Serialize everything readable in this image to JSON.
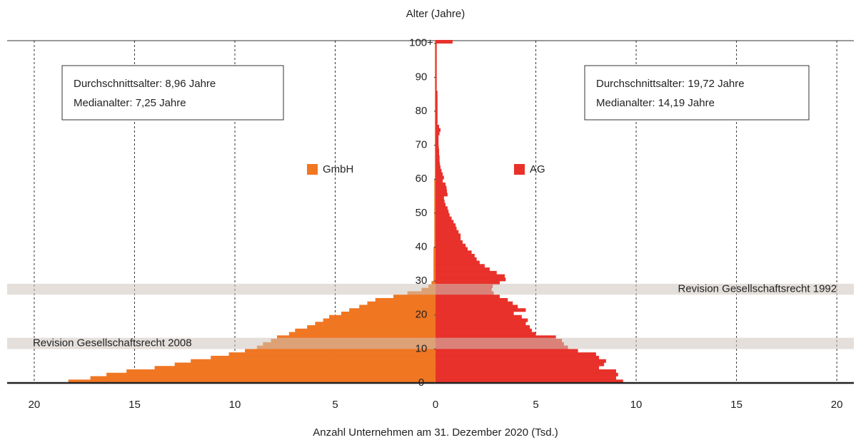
{
  "chart_data": {
    "type": "pyramid",
    "title": "Alter (Jahre)",
    "xlabel": "Anzahl Unternehmen am 31. Dezember 2020 (Tsd.)",
    "y": [
      0,
      1,
      2,
      3,
      4,
      5,
      6,
      7,
      8,
      9,
      10,
      11,
      12,
      13,
      14,
      15,
      16,
      17,
      18,
      19,
      20,
      21,
      22,
      23,
      24,
      25,
      26,
      27,
      28,
      29,
      30,
      31,
      32,
      33,
      34,
      35,
      36,
      37,
      38,
      39,
      40,
      41,
      42,
      43,
      44,
      45,
      46,
      47,
      48,
      49,
      50,
      51,
      52,
      53,
      54,
      55,
      56,
      57,
      58,
      59,
      60,
      61,
      62,
      63,
      64,
      65,
      66,
      67,
      68,
      69,
      70,
      71,
      72,
      73,
      74,
      75,
      76,
      77,
      78,
      79,
      80,
      81,
      82,
      83,
      84,
      85,
      86,
      87,
      88,
      89,
      90,
      91,
      92,
      93,
      94,
      95,
      96,
      97,
      98,
      99,
      100
    ],
    "series": [
      {
        "name": "GmbH",
        "color": "#f07622",
        "side": "left",
        "values": [
          18.3,
          17.2,
          16.4,
          15.4,
          14.0,
          13.0,
          12.2,
          11.2,
          10.3,
          9.5,
          8.9,
          8.6,
          8.2,
          7.9,
          7.3,
          7.0,
          6.4,
          6.0,
          5.6,
          5.3,
          4.7,
          4.3,
          3.8,
          3.4,
          3.0,
          2.1,
          1.4,
          0.7,
          0.35,
          0.2,
          0.1,
          0.1,
          0.1,
          0.1,
          0.1,
          0.1,
          0.1,
          0.1,
          0.1,
          0.1,
          0.06,
          0.06,
          0.06,
          0.06,
          0.06,
          0.06,
          0.06,
          0.06,
          0.06,
          0.06,
          0.06,
          0.06,
          0.06,
          0.06,
          0.06,
          0.06,
          0.06,
          0.06,
          0.06,
          0.06,
          0.03,
          0.03,
          0.03,
          0.03,
          0.03,
          0.03,
          0.03,
          0.03,
          0.03,
          0.03,
          0.03,
          0.03,
          0.03,
          0.03,
          0.03,
          0.03,
          0.03,
          0.03,
          0.03,
          0.03,
          0.03,
          0.03,
          0.03,
          0.03,
          0.03,
          0.03,
          0.03,
          0.03,
          0.03,
          0.03,
          0.03,
          0.03,
          0.03,
          0.03,
          0.03,
          0.03,
          0.03,
          0.03,
          0.03,
          0.03,
          0.03
        ],
        "stats": [
          "Durchschnittsalter: 8,96 Jahre",
          "Medianalter: 7,25 Jahre"
        ]
      },
      {
        "name": "AG",
        "color": "#e8312a",
        "side": "right",
        "values": [
          9.35,
          9.0,
          9.1,
          9.0,
          8.15,
          8.4,
          8.5,
          8.15,
          8.0,
          7.1,
          6.6,
          6.4,
          6.3,
          6.0,
          5.0,
          4.8,
          4.7,
          4.5,
          4.6,
          4.3,
          3.9,
          4.5,
          4.1,
          3.85,
          3.6,
          3.2,
          2.9,
          2.8,
          2.85,
          3.2,
          3.5,
          3.45,
          3.05,
          2.7,
          2.45,
          2.2,
          2.05,
          1.95,
          1.8,
          1.6,
          1.5,
          1.35,
          1.25,
          1.25,
          1.15,
          1.05,
          1.0,
          0.9,
          0.8,
          0.7,
          0.65,
          0.6,
          0.5,
          0.45,
          0.42,
          0.6,
          0.57,
          0.55,
          0.5,
          0.36,
          0.42,
          0.36,
          0.3,
          0.25,
          0.22,
          0.2,
          0.2,
          0.18,
          0.18,
          0.16,
          0.15,
          0.15,
          0.15,
          0.2,
          0.25,
          0.18,
          0.1,
          0.1,
          0.1,
          0.1,
          0.1,
          0.1,
          0.1,
          0.1,
          0.1,
          0.1,
          0.06,
          0.06,
          0.06,
          0.06,
          0.06,
          0.06,
          0.06,
          0.06,
          0.06,
          0.06,
          0.06,
          0.06,
          0.06,
          0.06,
          0.85
        ],
        "stats": [
          "Durchschnittsalter: 19,72 Jahre",
          "Medianalter: 14,19 Jahre"
        ]
      }
    ],
    "bands": [
      {
        "label": "Revision Gesellschaftsrecht 1992",
        "range": [
          26,
          29.2
        ],
        "align": "right"
      },
      {
        "label": "Revision Gesellschaftsrecht 2008",
        "range": [
          10,
          13.3
        ],
        "align": "left"
      }
    ],
    "xlim": [
      -21.35,
      20.85
    ],
    "xticks": [
      {
        "value": -20,
        "label": "20"
      },
      {
        "value": -15,
        "label": "15"
      },
      {
        "value": -10,
        "label": "10"
      },
      {
        "value": -5,
        "label": "5"
      },
      0,
      5,
      10,
      15,
      20
    ],
    "ylim": [
      0,
      101
    ],
    "yticks": [
      0,
      10,
      20,
      30,
      40,
      50,
      60,
      70,
      80,
      90,
      {
        "value": 100,
        "label": "100+"
      }
    ],
    "grid": true
  }
}
